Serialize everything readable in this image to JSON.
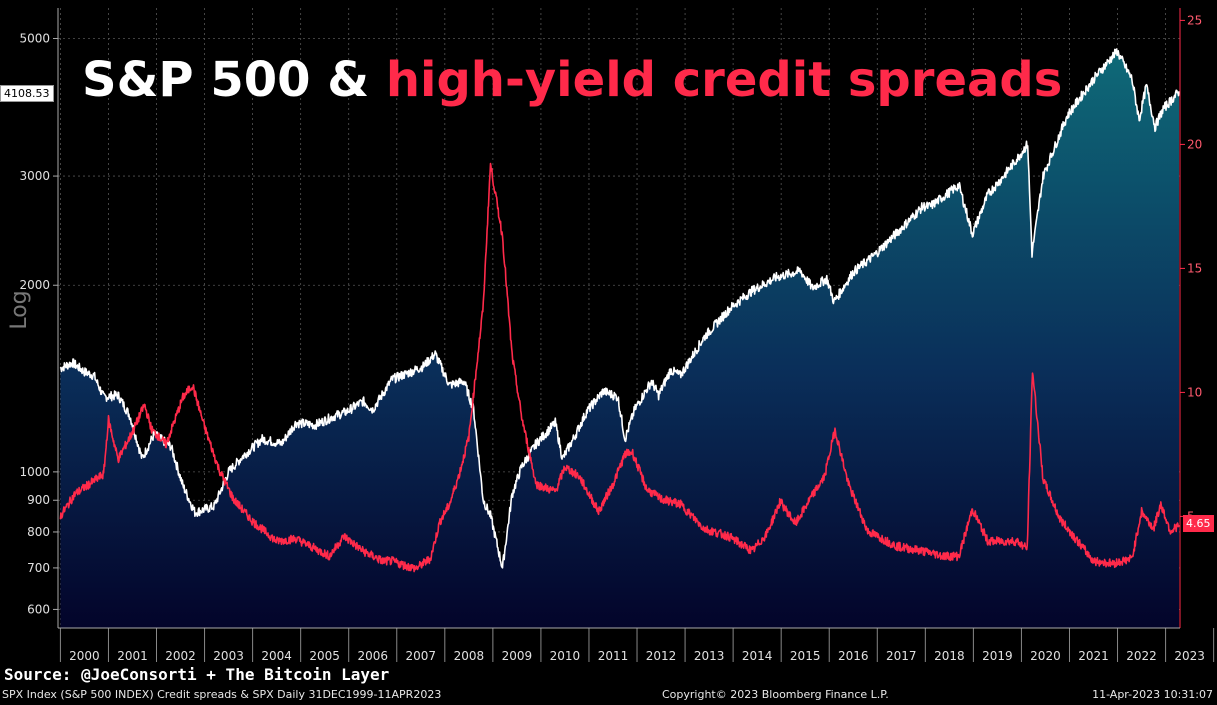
{
  "header": {
    "title_white": "S&P 500 &",
    "title_red": "high-yield credit spreads"
  },
  "source": "Source: @JoeConsorti + The Bitcoin Layer",
  "footer": {
    "left": "SPX Index (S&P 500 INDEX) Credit spreads & SPX  Daily 31DEC1999-11APR2023",
    "middle": "Copyright© 2023 Bloomberg Finance L.P.",
    "right": "11-Apr-2023 10:31:07"
  },
  "badges": {
    "spx_last": "4108.53",
    "spread_last": "4.65"
  },
  "colors": {
    "spx_line": "#ffffff",
    "spread_line": "#ff2a4a",
    "area_top": "#0e6a78",
    "area_bottom": "#03042a",
    "grid": "#555555"
  },
  "chart_data": {
    "type": "line",
    "x_label_years": [
      "2000",
      "2001",
      "2002",
      "2003",
      "2004",
      "2005",
      "2006",
      "2007",
      "2008",
      "2009",
      "2010",
      "2011",
      "2012",
      "2013",
      "2014",
      "2015",
      "2016",
      "2017",
      "2018",
      "2019",
      "2020",
      "2021",
      "2022",
      "2023"
    ],
    "left_axis": {
      "label": "Log",
      "scale": "log",
      "ticks": [
        600,
        700,
        800,
        900,
        1000,
        2000,
        3000,
        5000
      ],
      "range": [
        560,
        5600
      ]
    },
    "right_axis": {
      "scale": "linear",
      "ticks": [
        5,
        10,
        15,
        20,
        25
      ],
      "range": [
        0.5,
        25.5
      ]
    },
    "grid": true,
    "series": [
      {
        "name": "SPX",
        "axis": "left",
        "style": "area",
        "x": [
          2000.0,
          2000.25,
          2000.5,
          2000.7,
          2000.9,
          2001.2,
          2001.45,
          2001.7,
          2001.95,
          2002.3,
          2002.55,
          2002.8,
          2003.2,
          2003.5,
          2003.8,
          2004.2,
          2004.6,
          2004.9,
          2005.3,
          2005.7,
          2005.95,
          2006.3,
          2006.5,
          2006.9,
          2007.3,
          2007.55,
          2007.8,
          2008.1,
          2008.4,
          2008.6,
          2008.8,
          2008.95,
          2009.2,
          2009.4,
          2009.6,
          2009.9,
          2010.3,
          2010.45,
          2010.7,
          2010.95,
          2011.3,
          2011.6,
          2011.75,
          2011.95,
          2012.3,
          2012.45,
          2012.7,
          2012.9,
          2013.4,
          2013.95,
          2014.4,
          2014.9,
          2015.4,
          2015.65,
          2015.95,
          2016.1,
          2016.5,
          2016.95,
          2017.5,
          2017.95,
          2018.1,
          2018.7,
          2018.98,
          2019.3,
          2019.6,
          2019.95,
          2020.13,
          2020.22,
          2020.45,
          2020.95,
          2021.5,
          2021.99,
          2022.3,
          2022.45,
          2022.6,
          2022.78,
          2022.95,
          2023.15,
          2023.28
        ],
        "y": [
          1469,
          1500,
          1450,
          1430,
          1320,
          1330,
          1230,
          1050,
          1150,
          1100,
          950,
          860,
          880,
          1000,
          1060,
          1130,
          1110,
          1200,
          1190,
          1230,
          1250,
          1300,
          1260,
          1410,
          1450,
          1480,
          1550,
          1380,
          1400,
          1260,
          900,
          850,
          700,
          920,
          1020,
          1110,
          1200,
          1050,
          1140,
          1250,
          1350,
          1320,
          1130,
          1260,
          1400,
          1330,
          1460,
          1430,
          1650,
          1840,
          1960,
          2060,
          2110,
          1980,
          2050,
          1880,
          2100,
          2240,
          2470,
          2680,
          2680,
          2900,
          2420,
          2800,
          2980,
          3230,
          3380,
          2250,
          3000,
          3750,
          4300,
          4770,
          4300,
          3700,
          4200,
          3600,
          3850,
          4000,
          4110
        ]
      },
      {
        "name": "Credit spreads",
        "axis": "right",
        "style": "line",
        "x": [
          2000.0,
          2000.3,
          2000.6,
          2000.9,
          2001.0,
          2001.2,
          2001.5,
          2001.75,
          2001.9,
          2002.2,
          2002.55,
          2002.75,
          2003.0,
          2003.3,
          2003.6,
          2004.0,
          2004.5,
          2004.9,
          2005.3,
          2005.6,
          2005.9,
          2006.3,
          2006.7,
          2006.9,
          2007.2,
          2007.4,
          2007.7,
          2007.9,
          2008.1,
          2008.3,
          2008.5,
          2008.8,
          2008.95,
          2009.2,
          2009.4,
          2009.6,
          2009.9,
          2010.3,
          2010.5,
          2010.8,
          2011.2,
          2011.5,
          2011.75,
          2011.9,
          2012.2,
          2012.5,
          2012.9,
          2013.4,
          2013.9,
          2014.4,
          2014.7,
          2014.98,
          2015.3,
          2015.6,
          2015.9,
          2016.12,
          2016.4,
          2016.8,
          2017.4,
          2017.95,
          2018.4,
          2018.7,
          2018.98,
          2019.3,
          2019.9,
          2020.12,
          2020.23,
          2020.45,
          2020.8,
          2021.5,
          2021.9,
          2022.3,
          2022.5,
          2022.75,
          2022.9,
          2023.1,
          2023.28
        ],
        "y": [
          5.0,
          5.9,
          6.3,
          6.7,
          8.9,
          7.3,
          8.4,
          9.5,
          8.5,
          7.9,
          9.8,
          10.3,
          8.6,
          6.9,
          5.7,
          4.8,
          4.0,
          4.1,
          3.7,
          3.4,
          4.2,
          3.6,
          3.2,
          3.2,
          3.0,
          2.9,
          3.3,
          4.8,
          5.5,
          6.7,
          8.2,
          13.5,
          19.2,
          16.3,
          11.5,
          9.0,
          6.3,
          6.0,
          7.0,
          6.6,
          5.2,
          6.3,
          7.5,
          7.6,
          6.1,
          5.7,
          5.5,
          4.5,
          4.2,
          3.6,
          4.3,
          5.6,
          4.7,
          5.7,
          6.6,
          8.5,
          6.3,
          4.4,
          3.8,
          3.6,
          3.4,
          3.4,
          5.3,
          4.0,
          4.0,
          3.7,
          10.9,
          6.5,
          4.9,
          3.2,
          3.1,
          3.3,
          5.2,
          4.5,
          5.5,
          4.4,
          4.65
        ]
      }
    ]
  }
}
